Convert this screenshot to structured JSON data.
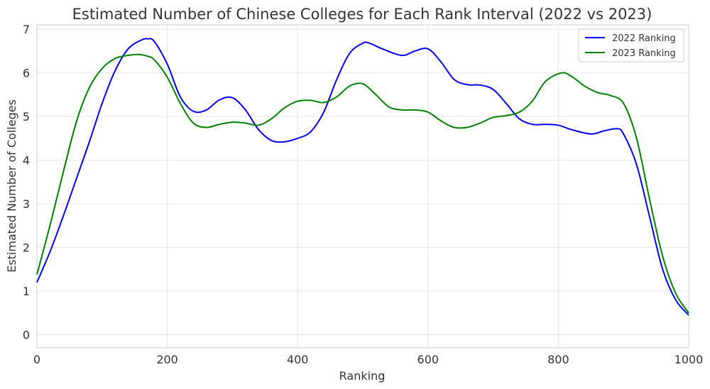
{
  "chart_data": {
    "type": "line",
    "title": "Estimated Number of Chinese Colleges for Each Rank Interval (2022 vs 2023)",
    "xlabel": "Ranking",
    "ylabel": "Estimated Number of Colleges",
    "xlim": [
      0,
      1000
    ],
    "ylim": [
      -0.3,
      7.1
    ],
    "xticks": [
      0,
      200,
      400,
      600,
      800,
      1000
    ],
    "yticks": [
      0,
      1,
      2,
      3,
      4,
      5,
      6,
      7
    ],
    "grid": true,
    "legend_position": "top-right",
    "series": [
      {
        "name": "2022 Ranking",
        "color": "#0000ff",
        "x": [
          0,
          20,
          40,
          60,
          80,
          100,
          120,
          140,
          160,
          170,
          180,
          200,
          220,
          240,
          260,
          280,
          300,
          320,
          340,
          360,
          380,
          400,
          420,
          440,
          460,
          480,
          500,
          510,
          530,
          560,
          580,
          600,
          620,
          640,
          660,
          680,
          700,
          720,
          740,
          760,
          780,
          800,
          820,
          850,
          870,
          890,
          900,
          920,
          940,
          960,
          980,
          1000
        ],
        "y": [
          1.2,
          1.9,
          2.7,
          3.55,
          4.4,
          5.3,
          6.05,
          6.55,
          6.75,
          6.78,
          6.72,
          6.2,
          5.45,
          5.12,
          5.15,
          5.38,
          5.43,
          5.15,
          4.7,
          4.45,
          4.42,
          4.5,
          4.65,
          5.1,
          5.85,
          6.45,
          6.68,
          6.68,
          6.55,
          6.4,
          6.5,
          6.55,
          6.25,
          5.85,
          5.73,
          5.72,
          5.62,
          5.3,
          4.95,
          4.82,
          4.82,
          4.8,
          4.7,
          4.6,
          4.67,
          4.72,
          4.6,
          3.9,
          2.7,
          1.5,
          0.8,
          0.45
        ]
      },
      {
        "name": "2023 Ranking",
        "color": "#008000",
        "x": [
          0,
          20,
          40,
          60,
          80,
          100,
          120,
          140,
          155,
          170,
          180,
          200,
          220,
          240,
          260,
          280,
          300,
          320,
          340,
          360,
          380,
          400,
          420,
          440,
          460,
          480,
          500,
          520,
          540,
          560,
          580,
          600,
          620,
          640,
          660,
          680,
          700,
          720,
          740,
          760,
          780,
          805,
          820,
          840,
          860,
          880,
          900,
          920,
          940,
          960,
          980,
          1000
        ],
        "y": [
          1.38,
          2.5,
          3.7,
          4.85,
          5.65,
          6.1,
          6.33,
          6.4,
          6.42,
          6.38,
          6.3,
          5.9,
          5.3,
          4.85,
          4.75,
          4.82,
          4.87,
          4.85,
          4.8,
          4.95,
          5.2,
          5.35,
          5.37,
          5.32,
          5.45,
          5.7,
          5.75,
          5.5,
          5.22,
          5.15,
          5.15,
          5.1,
          4.9,
          4.75,
          4.75,
          4.85,
          4.98,
          5.02,
          5.1,
          5.35,
          5.8,
          6.0,
          5.92,
          5.7,
          5.55,
          5.48,
          5.3,
          4.5,
          3.1,
          1.8,
          0.95,
          0.5
        ]
      }
    ]
  }
}
